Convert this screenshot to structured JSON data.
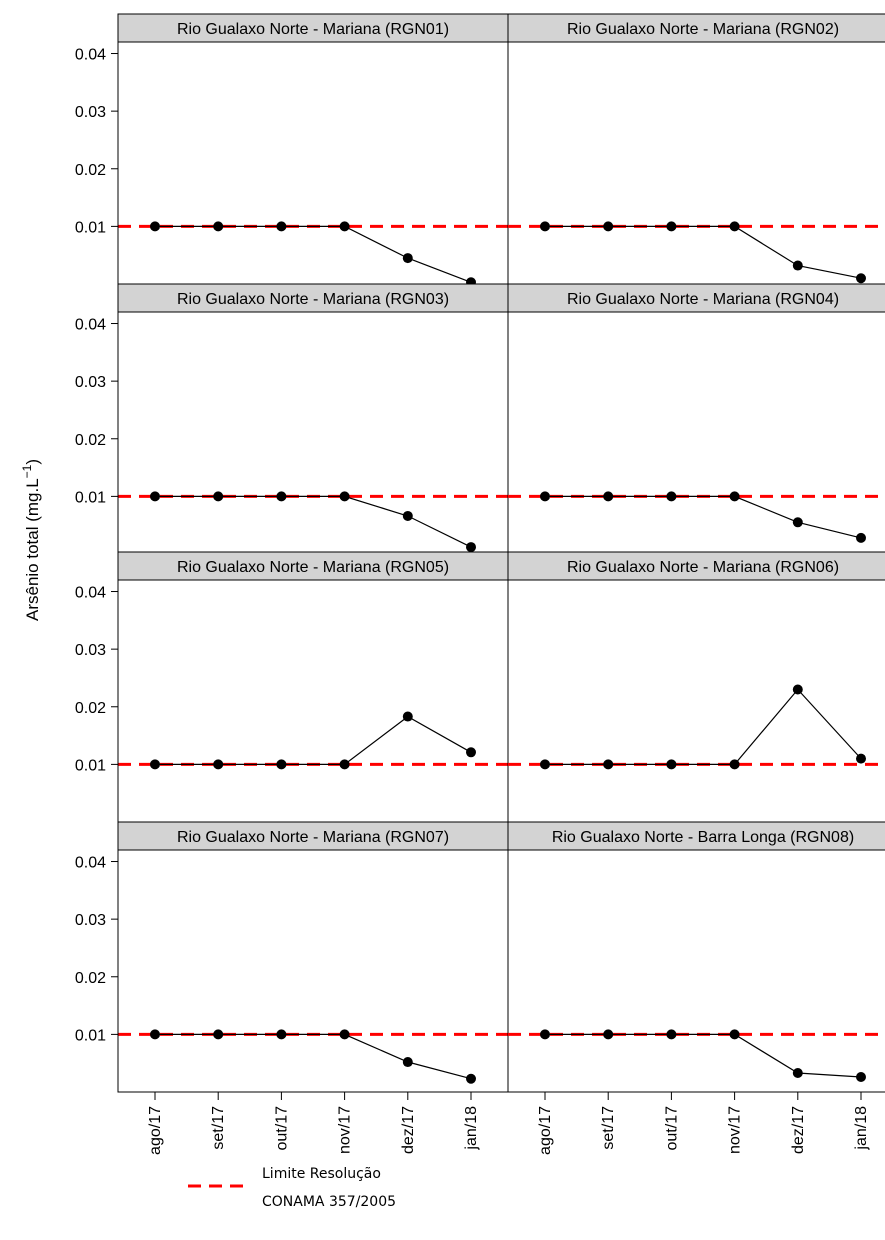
{
  "chart_data": {
    "type": "line",
    "ylabel": "Arsênio total (mg.L",
    "ylabel_superscript": "−1",
    "ylabel_suffix": ")",
    "categories": [
      "ago/17",
      "set/17",
      "out/17",
      "nov/17",
      "dez/17",
      "jan/18"
    ],
    "yticks": [
      0.01,
      0.02,
      0.03,
      0.04
    ],
    "ytick_labels": [
      "0.01",
      "0.02",
      "0.03",
      "0.04"
    ],
    "ylim": [
      0.0,
      0.042
    ],
    "grid": false,
    "threshold": 0.01,
    "threshold_color": "#ff0000",
    "line_color": "#000000",
    "strip_color": "#d3d3d3",
    "legend": {
      "placement": "bottom-left",
      "line1": "Limite Resolução",
      "line2": "CONAMA 357/2005"
    },
    "panels": [
      {
        "title": "Rio Gualaxo Norte - Mariana (RGN01)",
        "values": [
          0.01,
          0.01,
          0.01,
          0.01,
          0.0045,
          0.0003
        ]
      },
      {
        "title": "Rio Gualaxo Norte - Mariana (RGN02)",
        "values": [
          0.01,
          0.01,
          0.01,
          0.01,
          0.0032,
          0.001
        ]
      },
      {
        "title": "Rio Gualaxo Norte - Mariana (RGN03)",
        "values": [
          0.01,
          0.01,
          0.01,
          0.01,
          0.0066,
          0.0012
        ]
      },
      {
        "title": "Rio Gualaxo Norte - Mariana (RGN04)",
        "values": [
          0.01,
          0.01,
          0.01,
          0.01,
          0.0055,
          0.0028
        ]
      },
      {
        "title": "Rio Gualaxo Norte - Mariana (RGN05)",
        "values": [
          0.01,
          0.01,
          0.01,
          0.01,
          0.0183,
          0.0121
        ]
      },
      {
        "title": "Rio Gualaxo Norte - Mariana (RGN06)",
        "values": [
          0.01,
          0.01,
          0.01,
          0.01,
          0.023,
          0.011
        ]
      },
      {
        "title": "Rio Gualaxo Norte - Mariana (RGN07)",
        "values": [
          0.01,
          0.01,
          0.01,
          0.01,
          0.0052,
          0.0023
        ]
      },
      {
        "title": "Rio Gualaxo Norte - Barra Longa (RGN08)",
        "values": [
          0.01,
          0.01,
          0.01,
          0.01,
          0.0033,
          0.0026
        ]
      }
    ]
  }
}
